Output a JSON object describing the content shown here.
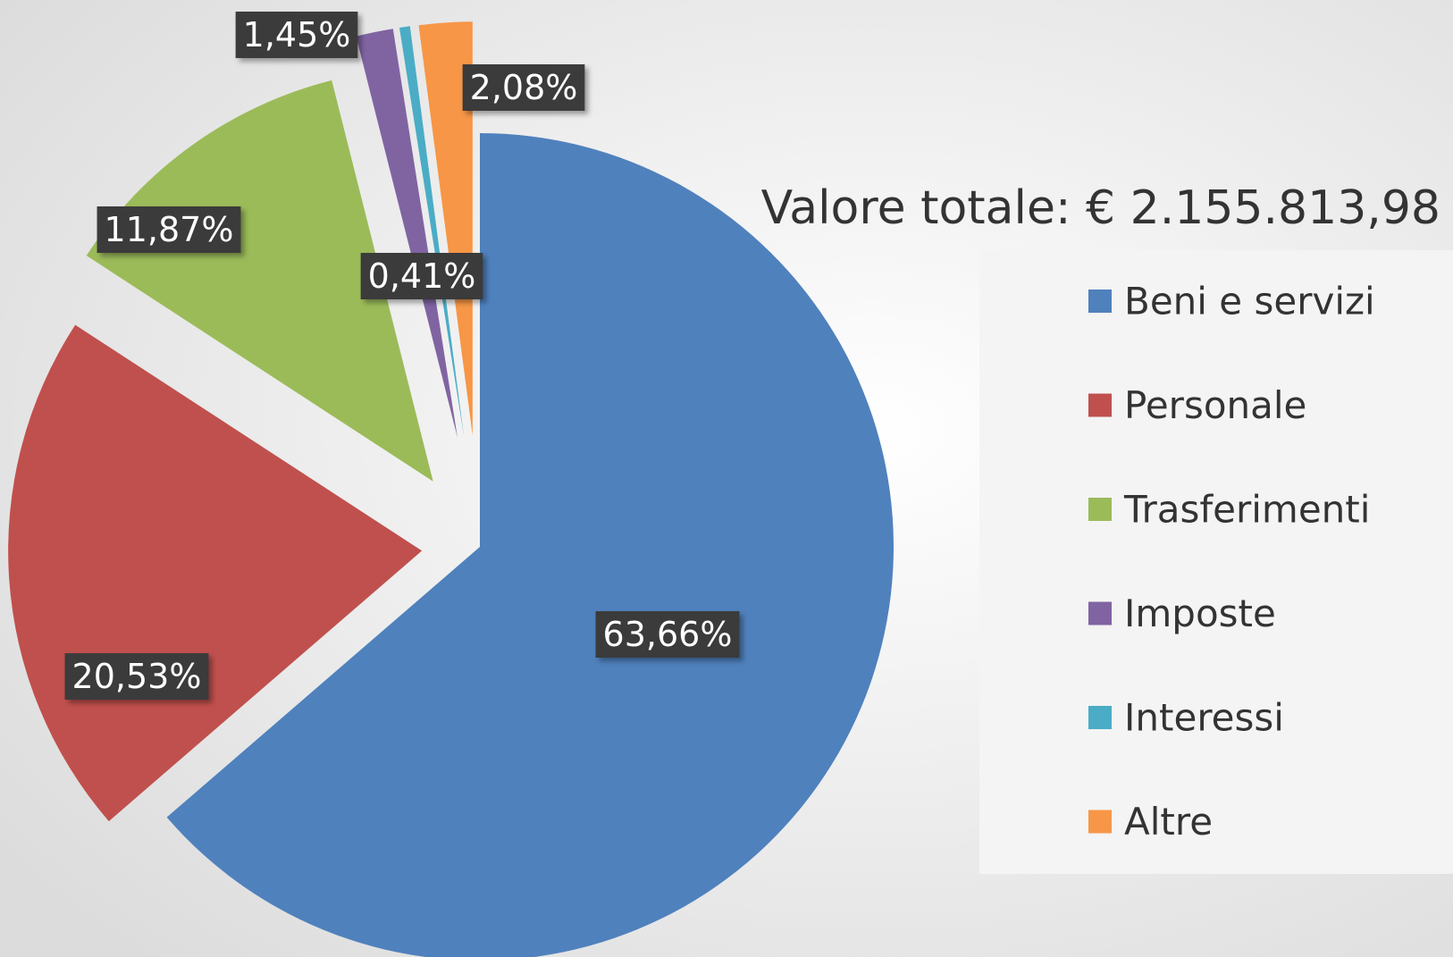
{
  "chart_data": {
    "type": "pie",
    "title": "Valore totale: € 2.155.813,98",
    "categories": [
      "Beni e servizi",
      "Personale",
      "Trasferimenti",
      "Imposte",
      "Interessi",
      "Altre"
    ],
    "values": [
      63.66,
      20.53,
      11.87,
      1.45,
      0.41,
      2.08
    ],
    "value_labels": [
      "63,66%",
      "20,53%",
      "11,87%",
      "1,45%",
      "0,41%",
      "2,08%"
    ],
    "colors": [
      "#4f81bd",
      "#c0504d",
      "#9bbb59",
      "#8064a2",
      "#4bacc6",
      "#f79646"
    ],
    "legend": "right"
  }
}
